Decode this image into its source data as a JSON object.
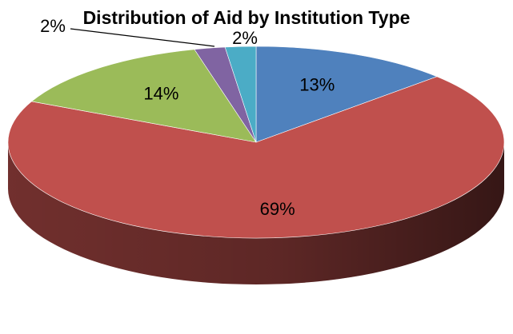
{
  "chart_data": {
    "type": "pie",
    "title": "Distribution of Aid by Institution Type",
    "three_d": true,
    "legend": "none",
    "slices": [
      {
        "label": "13%",
        "value": 13,
        "color": "#4f81bd"
      },
      {
        "label": "69%",
        "value": 69,
        "color": "#c0504d"
      },
      {
        "label": "14%",
        "value": 14,
        "color": "#9bbb59"
      },
      {
        "label": "2%",
        "value": 2,
        "color": "#8064a2"
      },
      {
        "label": "2%",
        "value": 2,
        "color": "#4bacc6"
      }
    ]
  }
}
